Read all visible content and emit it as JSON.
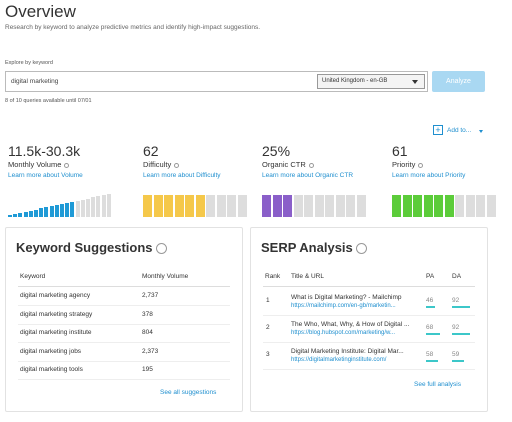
{
  "header": {
    "title": "Overview",
    "subtitle": "Research by keyword to analyze predictive metrics and identify high-impact suggestions."
  },
  "search": {
    "label": "Explore by keyword",
    "query": "digital marketing",
    "locale": "United Kingdom - en-GB",
    "button": "Analyze",
    "quota": "8 of 10 queries available until 07/01"
  },
  "add_to": "Add to...",
  "metrics": [
    {
      "value": "11.5k-30.3k",
      "name": "Monthly Volume",
      "link": "Learn more about Volume",
      "color": "#1f9ad6"
    },
    {
      "value": "62",
      "name": "Difficulty",
      "link": "Learn more about Difficulty",
      "color": "#f5c84a"
    },
    {
      "value": "25%",
      "name": "Organic CTR",
      "link": "Learn more about Organic CTR",
      "color": "#8a5fc9"
    },
    {
      "value": "61",
      "name": "Priority",
      "link": "Learn more about Priority",
      "color": "#5ccc3a"
    }
  ],
  "suggestions": {
    "title": "Keyword Suggestions",
    "columns": [
      "Keyword",
      "Monthly Volume"
    ],
    "rows": [
      [
        "digital marketing agency",
        "2,737"
      ],
      [
        "digital marketing strategy",
        "378"
      ],
      [
        "digital marketing institute",
        "804"
      ],
      [
        "digital marketing jobs",
        "2,373"
      ],
      [
        "digital marketing tools",
        "195"
      ]
    ],
    "link": "See all suggestions"
  },
  "serp": {
    "title": "SERP Analysis",
    "columns": [
      "Rank",
      "Title & URL",
      "PA",
      "DA"
    ],
    "rows": [
      {
        "rank": "1",
        "title": "What is Digital Marketing? - Mailchimp",
        "url": "https://mailchimp.com/en-gb/marketin...",
        "pa": 46,
        "da": 92
      },
      {
        "rank": "2",
        "title": "The Who, What, Why, & How of Digital ...",
        "url": "https://blog.hubspot.com/marketing/w...",
        "pa": 68,
        "da": 92
      },
      {
        "rank": "3",
        "title": "Digital Marketing Institute: Digital Mar...",
        "url": "https://digitalmarketinginstitute.com/",
        "pa": 58,
        "da": 59
      }
    ],
    "link": "See full analysis"
  }
}
